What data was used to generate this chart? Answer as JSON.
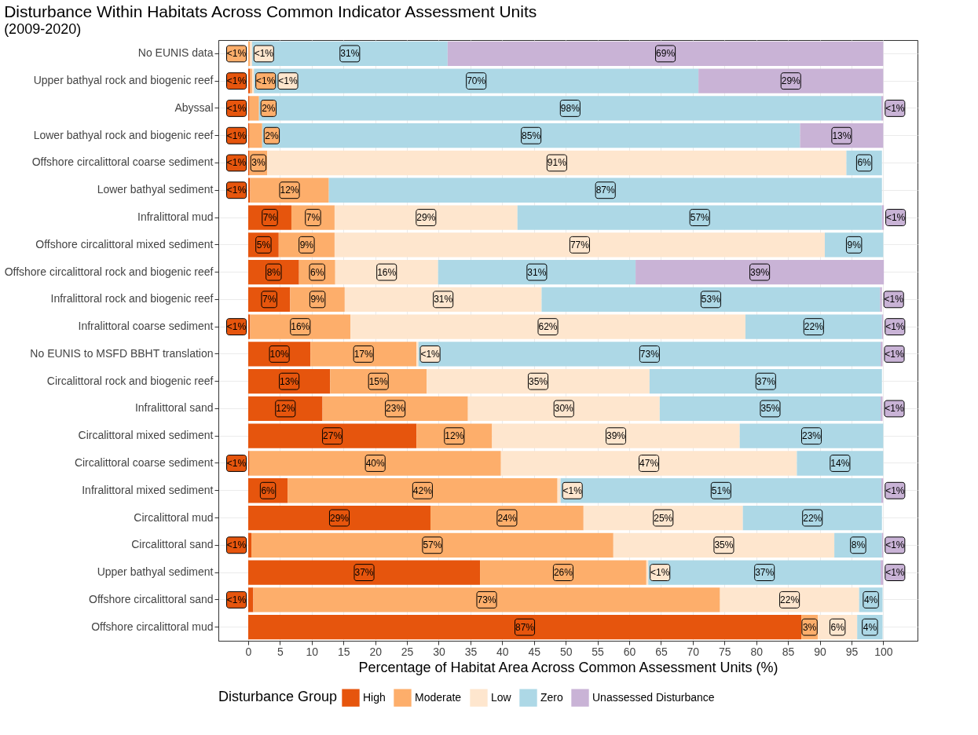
{
  "chart_data": {
    "type": "bar",
    "orientation": "horizontal",
    "stacked": true,
    "title": "Disturbance Within Habitats Across Common Indicator Assessment Units",
    "subtitle": "(2009-2020)",
    "xlabel": "Percentage of Habitat Area Across Common Assessment Units (%)",
    "legend_title": "Disturbance Group",
    "categories": [
      "No EUNIS data",
      "Upper bathyal rock and biogenic reef",
      "Abyssal",
      "Lower bathyal rock and biogenic reef",
      "Offshore circalittoral coarse sediment",
      "Lower bathyal sediment",
      "Infralittoral mud",
      "Offshore circalittoral mixed sediment",
      "Offshore circalittoral rock and biogenic reef",
      "Infralittoral rock and biogenic reef",
      "Infralittoral coarse sediment",
      "No EUNIS to MSFD BBHT translation",
      "Circalittoral rock and biogenic reef",
      "Infralittoral sand",
      "Circalittoral mixed sediment",
      "Circalittoral coarse sediment",
      "Infralittoral mixed sediment",
      "Circalittoral mud",
      "Circalittoral sand",
      "Upper bathyal sediment",
      "Offshore circalittoral sand",
      "Offshore circalittoral mud"
    ],
    "series": [
      {
        "name": "High",
        "color": "#e6550d",
        "values": [
          null,
          0.3,
          0.2,
          0.2,
          0.2,
          0.3,
          6.8,
          4.8,
          8.0,
          6.6,
          0.3,
          9.8,
          12.9,
          11.7,
          26.5,
          0.2,
          6.2,
          28.7,
          0.5,
          36.5,
          0.8,
          87.1
        ],
        "value_labels": [
          null,
          "<1%",
          "<1%",
          "<1%",
          "<1%",
          "<1%",
          "7%",
          "5%",
          "8%",
          "7%",
          "<1%",
          "10%",
          "13%",
          "12%",
          "27%",
          "<1%",
          "6%",
          "29%",
          "<1%",
          "37%",
          "<1%",
          "87%"
        ]
      },
      {
        "name": "Moderate",
        "color": "#fdae6b",
        "values": [
          0.3,
          0.3,
          1.5,
          2.0,
          2.8,
          12.4,
          6.8,
          8.8,
          5.7,
          8.6,
          15.8,
          16.7,
          15.2,
          22.9,
          11.9,
          39.6,
          42.5,
          24.1,
          57.0,
          26.2,
          73.5,
          2.6
        ],
        "value_labels": [
          "<1%",
          "<1%",
          "2%",
          "2%",
          "3%",
          "12%",
          "7%",
          "9%",
          "6%",
          "9%",
          "16%",
          "17%",
          "15%",
          "23%",
          "12%",
          "40%",
          "42%",
          "24%",
          "57%",
          "26%",
          "73%",
          "3%"
        ]
      },
      {
        "name": "Low",
        "color": "#fee6ce",
        "values": [
          0.3,
          0.3,
          null,
          null,
          91.2,
          null,
          28.8,
          77.2,
          16.2,
          31.0,
          62.2,
          0.3,
          35.1,
          30.2,
          39.0,
          46.6,
          0.5,
          25.1,
          34.8,
          0.3,
          21.9,
          6.2
        ],
        "value_labels": [
          "<1%",
          "<1%",
          null,
          null,
          "91%",
          null,
          "29%",
          "77%",
          "16%",
          "31%",
          "62%",
          "<1%",
          "35%",
          "30%",
          "39%",
          "47%",
          "<1%",
          "25%",
          "35%",
          "<1%",
          "22%",
          "6%"
        ]
      },
      {
        "name": "Zero",
        "color": "#add8e6",
        "values": [
          30.8,
          70.0,
          98.0,
          84.7,
          5.6,
          87.1,
          57.4,
          9.2,
          31.1,
          53.3,
          21.5,
          72.8,
          36.6,
          34.8,
          22.6,
          13.6,
          50.5,
          21.9,
          7.5,
          36.6,
          3.7,
          4.0
        ],
        "value_labels": [
          "31%",
          "70%",
          "98%",
          "85%",
          "6%",
          "87%",
          "57%",
          "9%",
          "31%",
          "53%",
          "22%",
          "73%",
          "37%",
          "35%",
          "23%",
          "14%",
          "51%",
          "22%",
          "8%",
          "37%",
          "4%",
          "4%"
        ]
      },
      {
        "name": "Unassessed Disturbance",
        "color": "#c9b3d6",
        "values": [
          68.6,
          29.1,
          0.3,
          13.1,
          null,
          null,
          0.3,
          null,
          39.1,
          0.3,
          0.2,
          0.3,
          null,
          0.3,
          null,
          null,
          0.3,
          null,
          0.2,
          0.4,
          null,
          null
        ],
        "value_labels": [
          "69%",
          "29%",
          "<1%",
          "13%",
          null,
          null,
          "<1%",
          null,
          "39%",
          "<1%",
          "<1%",
          "<1%",
          null,
          "<1%",
          null,
          null,
          "<1%",
          null,
          "<1%",
          "<1%",
          null,
          null
        ]
      }
    ],
    "xlim": [
      -4.7,
      105.4
    ],
    "xticks": [
      0,
      5,
      10,
      15,
      20,
      25,
      30,
      35,
      40,
      45,
      50,
      55,
      60,
      65,
      70,
      75,
      80,
      85,
      90,
      95,
      100
    ],
    "grid": true,
    "legend": "bottom"
  }
}
